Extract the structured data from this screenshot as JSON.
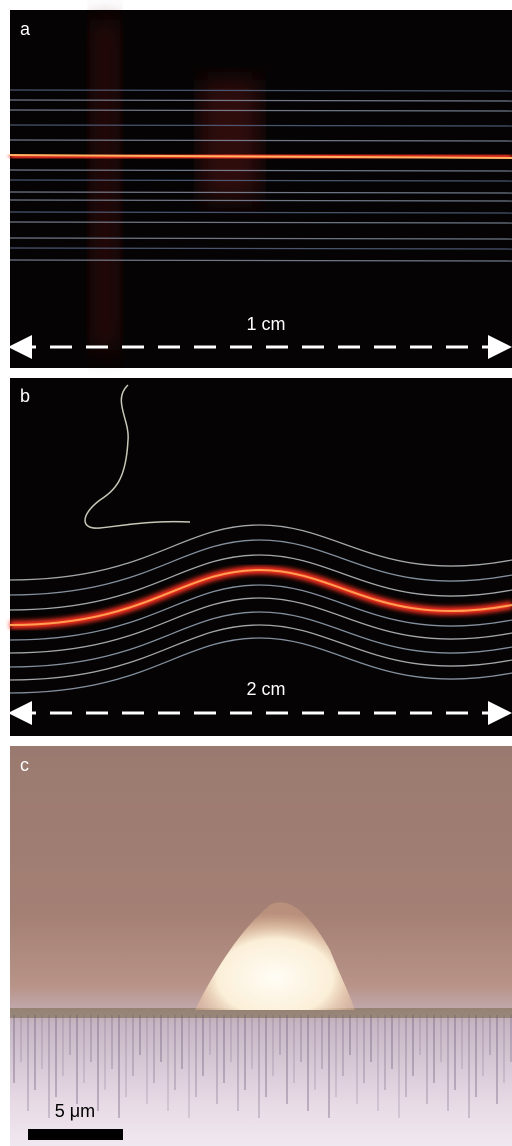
{
  "panels": [
    {
      "label": "a",
      "scale": "1 cm"
    },
    {
      "label": "b",
      "scale": "2 cm"
    },
    {
      "label": "c",
      "scale": "5 μm"
    }
  ]
}
